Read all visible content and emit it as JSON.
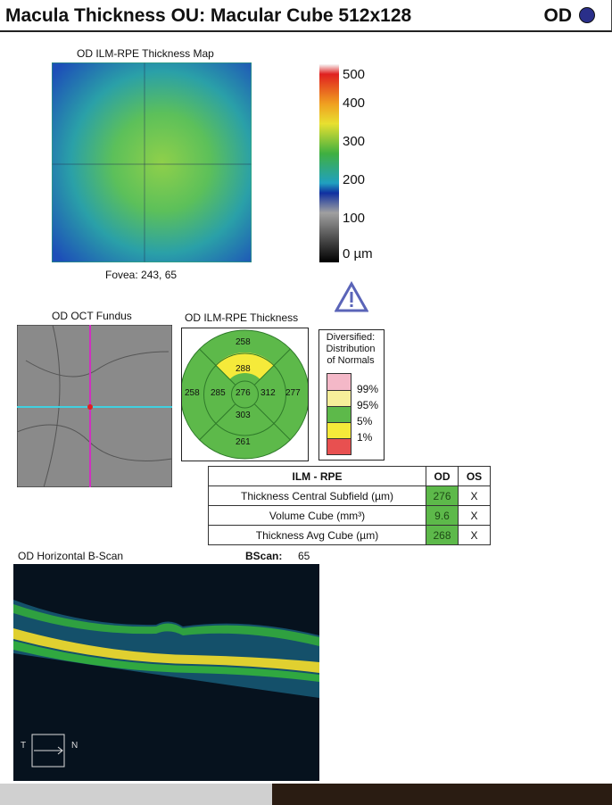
{
  "header": {
    "title": "Macula Thickness OU: Macular Cube 512x128",
    "eye": "OD"
  },
  "thickness_map": {
    "title": "OD ILM-RPE Thickness Map",
    "fovea": "Fovea: 243, 65",
    "scale": [
      "500",
      "400",
      "300",
      "200",
      "100",
      "0 µm"
    ]
  },
  "fundus": {
    "title": "OD OCT Fundus"
  },
  "etdrs": {
    "title": "OD ILM-RPE Thickness",
    "superior_outer": "258",
    "superior_inner": "288",
    "temporal_outer": "258",
    "temporal_inner": "285",
    "center": "276",
    "nasal_inner": "312",
    "nasal_outer": "277",
    "inferior_inner": "303",
    "inferior_outer": "261"
  },
  "legend": {
    "title": "Diversified: Distribution of Normals",
    "levels": [
      "99%",
      "95%",
      "5%",
      "1%"
    ]
  },
  "table": {
    "header": [
      "ILM - RPE",
      "OD",
      "OS"
    ],
    "rows": [
      {
        "label": "Thickness Central Subfield (µm)",
        "od": "276",
        "os": "X"
      },
      {
        "label": "Volume Cube (mm³)",
        "od": "9.6",
        "os": "X"
      },
      {
        "label": "Thickness Avg Cube (µm)",
        "od": "268",
        "os": "X"
      }
    ]
  },
  "bscan": {
    "title": "OD Horizontal B-Scan",
    "bscan_label": "BScan:",
    "bscan_value": "65",
    "t": "T",
    "n": "N"
  },
  "colors": {
    "normal": "#5db94a",
    "borderline": "#f5ea3a",
    "accent": "#2a2f8a"
  }
}
